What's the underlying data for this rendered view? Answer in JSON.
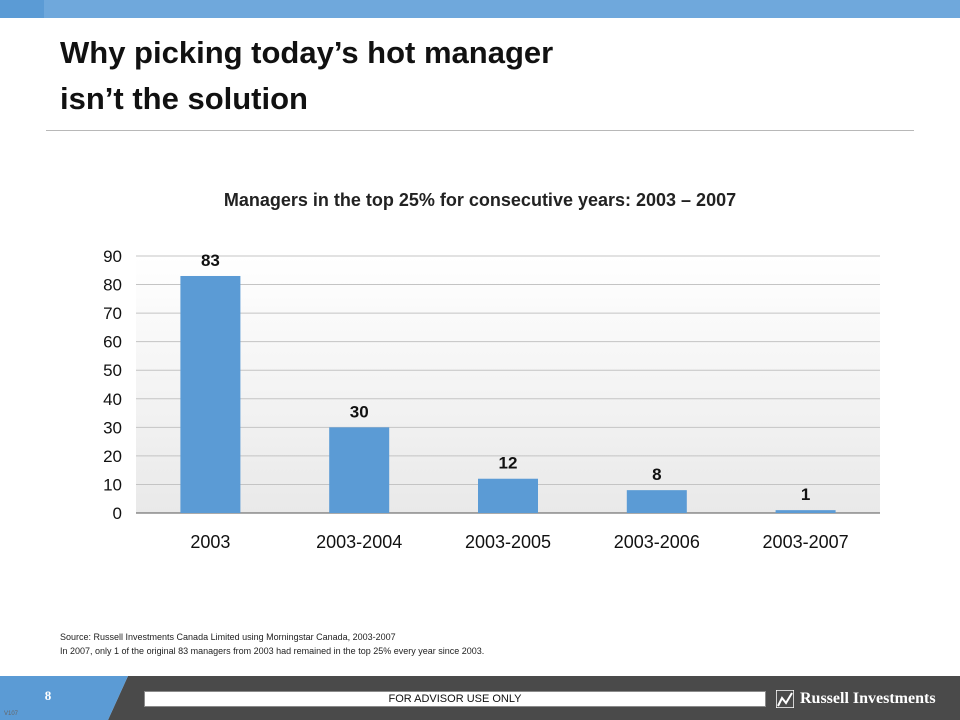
{
  "slide": {
    "title_line1": "Why picking today’s hot manager",
    "title_line2": "isn’t the solution",
    "source_line1": "Source: Russell Investments Canada Limited using Morningstar Canada, 2003-2007",
    "source_line2": "In 2007, only 1 of the original 83 managers from 2003 had remained in the top 25% every year since 2003."
  },
  "footer": {
    "page_number": "8",
    "advisor_label": "FOR ADVISOR USE ONLY",
    "brand": "Russell Investments",
    "brand_logo_icon": "russell-logo-icon",
    "version": "V107"
  },
  "colors": {
    "bar": "#5b9bd5",
    "top_bar": "#6fa8dc",
    "footer_dark": "#4a4a4a",
    "footer_accent": "#5b9bd5"
  },
  "chart_data": {
    "type": "bar",
    "title": "Managers in the top 25% for consecutive years: 2003 – 2007",
    "xlabel": "",
    "ylabel": "",
    "categories": [
      "2003",
      "2003-2004",
      "2003-2005",
      "2003-2006",
      "2003-2007"
    ],
    "values": [
      83,
      30,
      12,
      8,
      1
    ],
    "data_labels": [
      "83",
      "30",
      "12",
      "8",
      "1"
    ],
    "ylim": [
      0,
      90
    ],
    "yticks": [
      "0",
      "10",
      "20",
      "30",
      "40",
      "50",
      "60",
      "70",
      "80",
      "90"
    ],
    "grid": true,
    "legend": "none"
  }
}
